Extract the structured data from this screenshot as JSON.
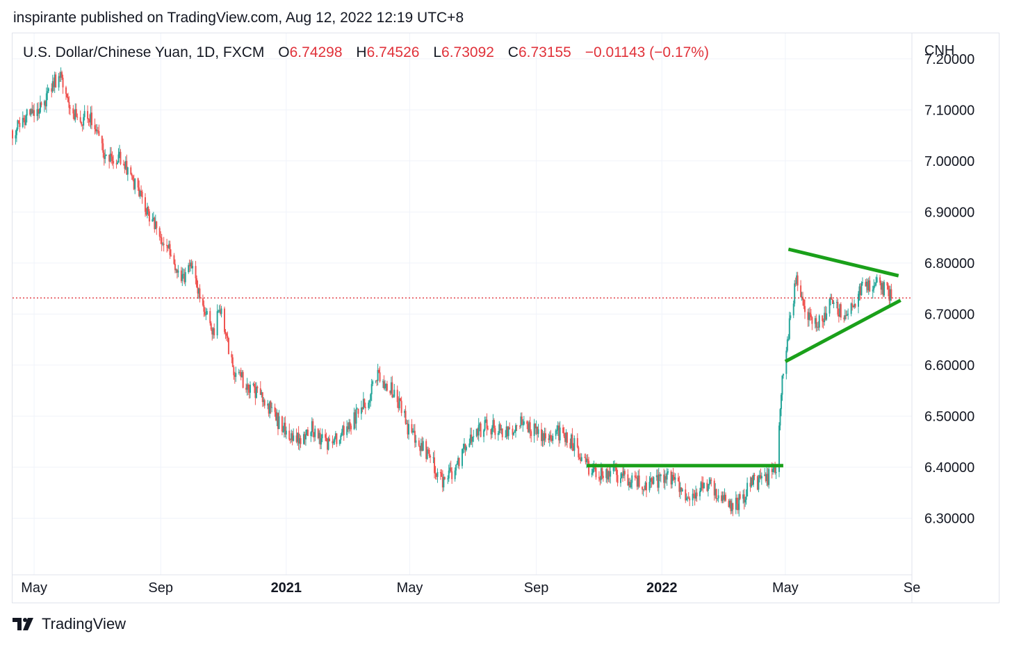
{
  "publish_line": "inspirante published on TradingView.com, Aug 12, 2022 12:19 UTC+8",
  "legend": {
    "symbol": "U.S. Dollar/Chinese Yuan, 1D, FXCM",
    "open_label": "O",
    "open": "6.74298",
    "high_label": "H",
    "high": "6.74526",
    "low_label": "L",
    "low": "6.73092",
    "close_label": "C",
    "close": "6.73155",
    "change": "−0.01143 (−0.17%)"
  },
  "brand": "TradingView",
  "colors": {
    "up": "#26a69a",
    "down": "#ef5350",
    "trendline": "#1aa01a",
    "price_line": "#e0313a",
    "grid": "#f0f3fa",
    "text": "#131722"
  },
  "chart_data": {
    "type": "candlestick",
    "title": "U.S. Dollar/Chinese Yuan, 1D, FXCM",
    "y_axis_label": "CNH",
    "y_ticks": [
      "7.20000",
      "7.10000",
      "7.00000",
      "6.90000",
      "6.80000",
      "6.70000",
      "6.60000",
      "6.50000",
      "6.40000",
      "6.30000"
    ],
    "ylim": [
      6.2,
      7.25
    ],
    "x_range": [
      "2020-04-10",
      "2022-09-01"
    ],
    "x_ticks": [
      {
        "label": "May",
        "date": "2020-05-01",
        "bold": false
      },
      {
        "label": "Sep",
        "date": "2020-09-01",
        "bold": false
      },
      {
        "label": "2021",
        "date": "2021-01-01",
        "bold": true
      },
      {
        "label": "May",
        "date": "2021-05-01",
        "bold": false
      },
      {
        "label": "Sep",
        "date": "2021-09-01",
        "bold": false
      },
      {
        "label": "2022",
        "date": "2022-01-01",
        "bold": true
      },
      {
        "label": "May",
        "date": "2022-05-01",
        "bold": false
      },
      {
        "label": "Se",
        "date": "2022-09-01",
        "bold": false
      }
    ],
    "price_path": [
      [
        "2020-04-10",
        7.06
      ],
      [
        "2020-04-25",
        7.09
      ],
      [
        "2020-05-12",
        7.12
      ],
      [
        "2020-05-27",
        7.18
      ],
      [
        "2020-06-05",
        7.09
      ],
      [
        "2020-06-25",
        7.08
      ],
      [
        "2020-07-10",
        7.0
      ],
      [
        "2020-07-25",
        7.01
      ],
      [
        "2020-08-10",
        6.94
      ],
      [
        "2020-08-31",
        6.85
      ],
      [
        "2020-09-10",
        6.83
      ],
      [
        "2020-09-20",
        6.76
      ],
      [
        "2020-10-01",
        6.79
      ],
      [
        "2020-10-15",
        6.7
      ],
      [
        "2020-10-22",
        6.66
      ],
      [
        "2020-10-28",
        6.72
      ],
      [
        "2020-11-10",
        6.59
      ],
      [
        "2020-11-25",
        6.56
      ],
      [
        "2020-12-10",
        6.53
      ],
      [
        "2020-12-31",
        6.47
      ],
      [
        "2021-01-10",
        6.45
      ],
      [
        "2021-01-25",
        6.48
      ],
      [
        "2021-02-10",
        6.44
      ],
      [
        "2021-02-28",
        6.48
      ],
      [
        "2021-03-15",
        6.51
      ],
      [
        "2021-04-01",
        6.58
      ],
      [
        "2021-04-15",
        6.55
      ],
      [
        "2021-05-01",
        6.47
      ],
      [
        "2021-05-20",
        6.42
      ],
      [
        "2021-06-01",
        6.37
      ],
      [
        "2021-06-15",
        6.4
      ],
      [
        "2021-06-30",
        6.46
      ],
      [
        "2021-07-15",
        6.48
      ],
      [
        "2021-08-01",
        6.47
      ],
      [
        "2021-08-20",
        6.49
      ],
      [
        "2021-09-10",
        6.45
      ],
      [
        "2021-09-25",
        6.47
      ],
      [
        "2021-10-10",
        6.44
      ],
      [
        "2021-10-25",
        6.39
      ],
      [
        "2021-11-10",
        6.39
      ],
      [
        "2021-11-25",
        6.38
      ],
      [
        "2021-12-10",
        6.37
      ],
      [
        "2021-12-25",
        6.37
      ],
      [
        "2022-01-10",
        6.38
      ],
      [
        "2022-01-25",
        6.33
      ],
      [
        "2022-02-10",
        6.37
      ],
      [
        "2022-02-25",
        6.35
      ],
      [
        "2022-03-10",
        6.32
      ],
      [
        "2022-03-20",
        6.34
      ],
      [
        "2022-03-31",
        6.37
      ],
      [
        "2022-04-10",
        6.37
      ],
      [
        "2022-04-22",
        6.4
      ],
      [
        "2022-04-28",
        6.58
      ],
      [
        "2022-05-05",
        6.68
      ],
      [
        "2022-05-12",
        6.77
      ],
      [
        "2022-05-20",
        6.7
      ],
      [
        "2022-06-01",
        6.68
      ],
      [
        "2022-06-15",
        6.72
      ],
      [
        "2022-06-30",
        6.7
      ],
      [
        "2022-07-15",
        6.75
      ],
      [
        "2022-07-30",
        6.76
      ],
      [
        "2022-08-05",
        6.75
      ],
      [
        "2022-08-12",
        6.73
      ]
    ],
    "last_price": 6.73155,
    "trendlines": [
      {
        "name": "support",
        "from": [
          "2021-10-20",
          6.403
        ],
        "to": [
          "2022-04-29",
          6.403
        ]
      },
      {
        "name": "upper",
        "from": [
          "2022-05-04",
          6.827
        ],
        "to": [
          "2022-08-19",
          6.775
        ]
      },
      {
        "name": "lower",
        "from": [
          "2022-05-01",
          6.607
        ],
        "to": [
          "2022-08-21",
          6.727
        ]
      }
    ]
  }
}
